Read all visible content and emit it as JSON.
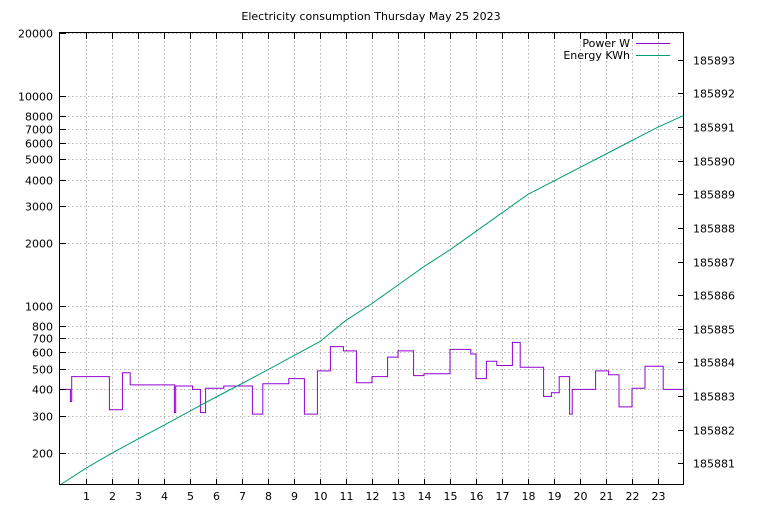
{
  "chart_data": {
    "type": "line",
    "title": "Electricity consumption Thursday May 25 2023",
    "x": {
      "range": [
        0,
        24
      ],
      "ticks": [
        1,
        2,
        3,
        4,
        5,
        6,
        7,
        8,
        9,
        10,
        11,
        12,
        13,
        14,
        15,
        16,
        17,
        18,
        19,
        20,
        21,
        22,
        23
      ]
    },
    "y_left": {
      "scale": "log",
      "range": [
        140,
        20000
      ],
      "ticks": [
        200,
        300,
        400,
        500,
        600,
        700,
        800,
        1000,
        2000,
        3000,
        4000,
        5000,
        6000,
        7000,
        8000,
        10000,
        20000
      ]
    },
    "y_right": {
      "range": [
        185880.35,
        185893.8
      ],
      "ticks": [
        185881,
        185882,
        185883,
        185884,
        185885,
        185886,
        185887,
        185888,
        185889,
        185890,
        185891,
        185892,
        185893
      ]
    },
    "grid": true,
    "legend_position": "top-right",
    "series": [
      {
        "name": "Power W",
        "axis": "left",
        "color": "#9400d3",
        "step": true,
        "points": [
          [
            0,
            400
          ],
          [
            0.4,
            400
          ],
          [
            0.4,
            350
          ],
          [
            0.45,
            350
          ],
          [
            0.45,
            460
          ],
          [
            1.9,
            460
          ],
          [
            1.9,
            320
          ],
          [
            2.4,
            320
          ],
          [
            2.4,
            480
          ],
          [
            2.7,
            480
          ],
          [
            2.7,
            420
          ],
          [
            4.4,
            420
          ],
          [
            4.4,
            310
          ],
          [
            4.45,
            310
          ],
          [
            4.45,
            415
          ],
          [
            5.1,
            415
          ],
          [
            5.1,
            400
          ],
          [
            5.4,
            400
          ],
          [
            5.4,
            310
          ],
          [
            5.6,
            310
          ],
          [
            5.6,
            405
          ],
          [
            6.3,
            405
          ],
          [
            6.3,
            415
          ],
          [
            7.4,
            415
          ],
          [
            7.4,
            305
          ],
          [
            7.8,
            305
          ],
          [
            7.8,
            425
          ],
          [
            8.8,
            425
          ],
          [
            8.8,
            450
          ],
          [
            9.4,
            450
          ],
          [
            9.4,
            305
          ],
          [
            9.9,
            305
          ],
          [
            9.9,
            490
          ],
          [
            10.4,
            490
          ],
          [
            10.4,
            640
          ],
          [
            10.9,
            640
          ],
          [
            10.9,
            610
          ],
          [
            11.4,
            610
          ],
          [
            11.4,
            430
          ],
          [
            12.0,
            430
          ],
          [
            12.0,
            460
          ],
          [
            12.6,
            460
          ],
          [
            12.6,
            570
          ],
          [
            13.0,
            570
          ],
          [
            13.0,
            610
          ],
          [
            13.6,
            610
          ],
          [
            13.6,
            465
          ],
          [
            14.0,
            465
          ],
          [
            14.0,
            475
          ],
          [
            15.0,
            475
          ],
          [
            15.0,
            620
          ],
          [
            15.8,
            620
          ],
          [
            15.8,
            590
          ],
          [
            16.0,
            590
          ],
          [
            16.0,
            450
          ],
          [
            16.4,
            450
          ],
          [
            16.4,
            545
          ],
          [
            16.8,
            545
          ],
          [
            16.8,
            520
          ],
          [
            17.4,
            520
          ],
          [
            17.4,
            670
          ],
          [
            17.7,
            670
          ],
          [
            17.7,
            510
          ],
          [
            18.6,
            510
          ],
          [
            18.6,
            370
          ],
          [
            18.9,
            370
          ],
          [
            18.9,
            385
          ],
          [
            19.2,
            385
          ],
          [
            19.2,
            460
          ],
          [
            19.6,
            460
          ],
          [
            19.6,
            305
          ],
          [
            19.7,
            305
          ],
          [
            19.7,
            400
          ],
          [
            20.6,
            400
          ],
          [
            20.6,
            490
          ],
          [
            21.1,
            490
          ],
          [
            21.1,
            470
          ],
          [
            21.5,
            470
          ],
          [
            21.5,
            330
          ],
          [
            22.0,
            330
          ],
          [
            22.0,
            405
          ],
          [
            22.5,
            405
          ],
          [
            22.5,
            515
          ],
          [
            23.2,
            515
          ],
          [
            23.2,
            400
          ],
          [
            24,
            400
          ]
        ]
      },
      {
        "name": "Energy KWh",
        "axis": "right",
        "color": "#009e73",
        "step": false,
        "points": [
          [
            0,
            185880.35
          ],
          [
            1,
            185880.85
          ],
          [
            2,
            185881.3
          ],
          [
            3,
            185881.72
          ],
          [
            4,
            185882.13
          ],
          [
            5,
            185882.55
          ],
          [
            6,
            185882.97
          ],
          [
            7,
            185883.37
          ],
          [
            8,
            185883.78
          ],
          [
            9,
            185884.2
          ],
          [
            10,
            185884.62
          ],
          [
            11,
            185885.25
          ],
          [
            12,
            185885.75
          ],
          [
            13,
            185886.3
          ],
          [
            14,
            185886.85
          ],
          [
            15,
            185887.35
          ],
          [
            16,
            185887.9
          ],
          [
            17,
            185888.45
          ],
          [
            18,
            185889.0
          ],
          [
            19,
            185889.4
          ],
          [
            20,
            185889.8
          ],
          [
            21,
            185890.2
          ],
          [
            22,
            185890.6
          ],
          [
            23,
            185891.0
          ],
          [
            24,
            185891.35
          ]
        ]
      }
    ]
  }
}
